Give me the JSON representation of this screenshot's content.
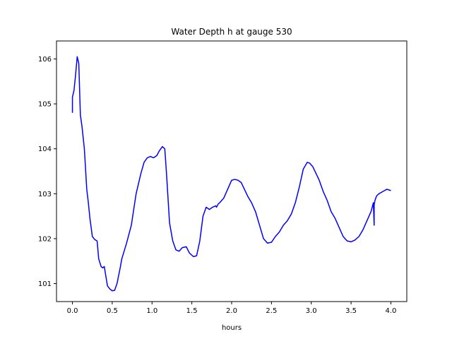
{
  "chart_data": {
    "type": "line",
    "title": "Water Depth h at gauge 530",
    "xlabel": "hours",
    "ylabel": "",
    "xlim": [
      -0.2,
      4.2
    ],
    "ylim": [
      100.6,
      106.4
    ],
    "xticks": [
      "0.0",
      "0.5",
      "1.0",
      "1.5",
      "2.0",
      "2.5",
      "3.0",
      "3.5",
      "4.0"
    ],
    "xtick_values": [
      0,
      0.5,
      1.0,
      1.5,
      2.0,
      2.5,
      3.0,
      3.5,
      4.0
    ],
    "yticks": [
      "101",
      "102",
      "103",
      "104",
      "105",
      "106"
    ],
    "ytick_values": [
      101,
      102,
      103,
      104,
      105,
      106
    ],
    "grid": false,
    "series": [
      {
        "color": "#0000ff",
        "x": [
          0.0,
          0.0,
          0.02,
          0.04,
          0.06,
          0.08,
          0.1,
          0.12,
          0.15,
          0.18,
          0.2,
          0.22,
          0.25,
          0.28,
          0.31,
          0.33,
          0.36,
          0.38,
          0.4,
          0.44,
          0.47,
          0.5,
          0.53,
          0.56,
          0.6,
          0.62,
          0.68,
          0.74,
          0.8,
          0.86,
          0.9,
          0.94,
          0.98,
          1.02,
          1.06,
          1.09,
          1.13,
          1.16,
          1.18,
          1.22,
          1.26,
          1.3,
          1.34,
          1.38,
          1.43,
          1.47,
          1.52,
          1.56,
          1.6,
          1.64,
          1.68,
          1.72,
          1.76,
          1.8,
          1.81,
          1.83,
          1.85,
          1.9,
          1.95,
          2.0,
          2.04,
          2.08,
          2.12,
          2.16,
          2.2,
          2.25,
          2.3,
          2.35,
          2.4,
          2.45,
          2.5,
          2.55,
          2.6,
          2.65,
          2.7,
          2.75,
          2.8,
          2.85,
          2.9,
          2.95,
          2.98,
          3.02,
          3.06,
          3.1,
          3.15,
          3.2,
          3.25,
          3.3,
          3.35,
          3.4,
          3.45,
          3.5,
          3.55,
          3.6,
          3.65,
          3.7,
          3.75,
          3.78,
          3.79,
          3.79,
          3.8,
          3.82,
          3.85,
          3.9,
          3.95,
          4.0
        ],
        "y": [
          104.8,
          105.15,
          105.3,
          105.65,
          106.05,
          105.9,
          104.75,
          104.5,
          104.0,
          103.1,
          102.8,
          102.45,
          102.05,
          101.98,
          101.95,
          101.55,
          101.38,
          101.35,
          101.38,
          100.95,
          100.88,
          100.84,
          100.85,
          101.0,
          101.35,
          101.55,
          101.9,
          102.3,
          103.0,
          103.45,
          103.7,
          103.8,
          103.83,
          103.8,
          103.85,
          103.95,
          104.05,
          104.0,
          103.5,
          102.35,
          101.95,
          101.75,
          101.72,
          101.8,
          101.82,
          101.68,
          101.6,
          101.62,
          101.95,
          102.5,
          102.7,
          102.65,
          102.7,
          102.73,
          102.7,
          102.77,
          102.8,
          102.9,
          103.1,
          103.3,
          103.32,
          103.3,
          103.25,
          103.1,
          102.95,
          102.8,
          102.6,
          102.3,
          102.0,
          101.9,
          101.92,
          102.05,
          102.15,
          102.3,
          102.4,
          102.55,
          102.8,
          103.15,
          103.55,
          103.7,
          103.68,
          103.6,
          103.45,
          103.3,
          103.05,
          102.85,
          102.6,
          102.45,
          102.25,
          102.05,
          101.95,
          101.93,
          101.97,
          102.05,
          102.2,
          102.4,
          102.6,
          102.8,
          102.3,
          102.75,
          102.85,
          102.95,
          103.0,
          103.05,
          103.1,
          103.07
        ]
      }
    ]
  }
}
